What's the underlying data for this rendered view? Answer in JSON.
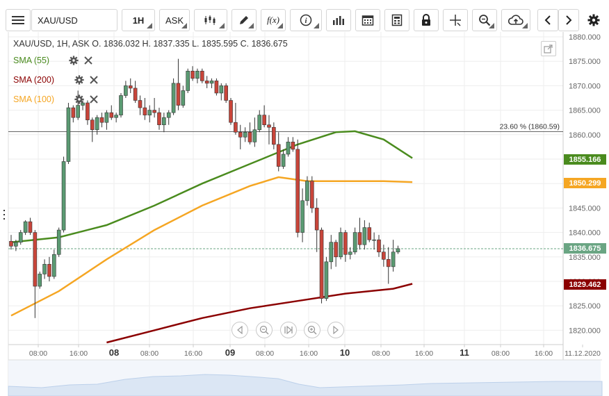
{
  "toolbar": {
    "symbol_value": "XAU/USD",
    "timeframe_label": "1H",
    "price_type_label": "ASK",
    "function_label": "f(x)",
    "info_label": "i",
    "icons": [
      "menu-icon",
      "chart-type-icon",
      "draw-pencil-icon",
      "function-icon",
      "info-icon",
      "indicators-bar-icon",
      "calendar-icon",
      "calculator-icon",
      "lock-icon",
      "crosshair-icon",
      "zoom-icon",
      "cloud-upload-icon",
      "arrow-left-icon",
      "arrow-right-icon",
      "gear-icon"
    ]
  },
  "header": {
    "ohlc_text": "XAU/USD, 1H, ASK    O. 1836.032  H. 1837.335  L. 1835.595  C. 1836.675"
  },
  "legend": [
    {
      "label": "SMA (55)",
      "color": "#4a8b1e"
    },
    {
      "label": "SMA (200)",
      "color": "#8b0000"
    },
    {
      "label": "SMA (100)",
      "color": "#f5a623"
    }
  ],
  "fib_label": "23.60 % (1860.59)",
  "price_tags": [
    {
      "label": "1855.166",
      "color": "#4a8b1e",
      "value": 1855.166
    },
    {
      "label": "1850.299",
      "color": "#f5a623",
      "value": 1850.299
    },
    {
      "label": "1836.675",
      "color": "#6aa583",
      "value": 1836.675
    },
    {
      "label": "1829.462",
      "color": "#8b0000",
      "value": 1829.462
    }
  ],
  "chart_data": {
    "type": "candlestick",
    "symbol": "XAU/USD",
    "timeframe": "1H",
    "y_ticks": [
      "1880.000",
      "1875.000",
      "1870.000",
      "1865.000",
      "1860.000",
      "1855.000",
      "1850.000",
      "1845.000",
      "1840.000",
      "1835.000",
      "1830.000",
      "1825.000",
      "1820.000"
    ],
    "ylim": [
      1816,
      1881
    ],
    "x_ticks": [
      "08:00",
      "16:00",
      "08",
      "08:00",
      "16:00",
      "09",
      "08:00",
      "16:00",
      "10",
      "08:00",
      "16:00",
      "11",
      "08:00",
      "16:00",
      "11.12.2020"
    ],
    "bold_x_ticks": [
      "08",
      "09",
      "10",
      "11"
    ],
    "fibonacci": {
      "level": "23.60 %",
      "value": 1860.59
    },
    "last_price": 1836.675,
    "candles": [
      [
        1838.2,
        1839.5,
        1836.5,
        1837.2
      ],
      [
        1837.2,
        1838.5,
        1836.2,
        1838.0
      ],
      [
        1838.0,
        1840.5,
        1837.5,
        1840.0
      ],
      [
        1840.0,
        1842.5,
        1839.5,
        1842.2
      ],
      [
        1842.2,
        1843.0,
        1839.5,
        1840.0
      ],
      [
        1840.0,
        1840.5,
        1822.5,
        1829.0
      ],
      [
        1829.0,
        1832.0,
        1828.5,
        1831.5
      ],
      [
        1831.5,
        1834.5,
        1830.5,
        1833.5
      ],
      [
        1833.5,
        1835.0,
        1830.0,
        1831.0
      ],
      [
        1831.0,
        1836.5,
        1830.5,
        1835.5
      ],
      [
        1835.5,
        1841.0,
        1835.0,
        1840.5
      ],
      [
        1840.5,
        1855.5,
        1840.0,
        1854.5
      ],
      [
        1854.5,
        1866.5,
        1854.0,
        1865.5
      ],
      [
        1865.5,
        1866.0,
        1862.5,
        1863.5
      ],
      [
        1863.5,
        1869.0,
        1863.0,
        1866.0
      ],
      [
        1866.0,
        1867.0,
        1865.0,
        1866.5
      ],
      [
        1866.5,
        1867.0,
        1862.0,
        1863.0
      ],
      [
        1863.0,
        1863.5,
        1858.5,
        1861.0
      ],
      [
        1861.0,
        1864.0,
        1860.0,
        1863.5
      ],
      [
        1863.5,
        1864.5,
        1861.5,
        1862.5
      ],
      [
        1862.5,
        1865.0,
        1861.0,
        1864.5
      ],
      [
        1864.5,
        1866.0,
        1863.0,
        1863.5
      ],
      [
        1863.5,
        1864.5,
        1862.5,
        1864.0
      ],
      [
        1864.0,
        1868.5,
        1863.5,
        1868.0
      ],
      [
        1868.0,
        1871.0,
        1867.5,
        1870.0
      ],
      [
        1870.0,
        1871.5,
        1868.5,
        1869.5
      ],
      [
        1869.5,
        1871.0,
        1866.5,
        1867.0
      ],
      [
        1867.0,
        1868.0,
        1864.0,
        1865.5
      ],
      [
        1865.5,
        1867.5,
        1863.0,
        1864.0
      ],
      [
        1864.0,
        1866.0,
        1862.5,
        1865.0
      ],
      [
        1865.0,
        1867.5,
        1863.5,
        1864.5
      ],
      [
        1864.5,
        1865.5,
        1861.0,
        1862.0
      ],
      [
        1862.0,
        1864.5,
        1860.5,
        1863.5
      ],
      [
        1863.5,
        1865.0,
        1862.0,
        1864.5
      ],
      [
        1864.5,
        1871.5,
        1864.0,
        1870.5
      ],
      [
        1870.5,
        1875.5,
        1865.0,
        1866.0
      ],
      [
        1866.0,
        1870.0,
        1865.5,
        1869.0
      ],
      [
        1869.0,
        1873.5,
        1868.5,
        1873.0
      ],
      [
        1873.0,
        1874.0,
        1871.0,
        1871.5
      ],
      [
        1871.5,
        1873.5,
        1870.5,
        1873.0
      ],
      [
        1873.0,
        1873.5,
        1870.5,
        1871.0
      ],
      [
        1871.0,
        1872.0,
        1869.5,
        1870.5
      ],
      [
        1870.5,
        1871.5,
        1869.5,
        1871.0
      ],
      [
        1871.0,
        1871.5,
        1868.0,
        1868.5
      ],
      [
        1868.5,
        1870.5,
        1867.0,
        1870.0
      ],
      [
        1870.0,
        1870.5,
        1866.5,
        1867.0
      ],
      [
        1867.0,
        1867.5,
        1862.0,
        1862.5
      ],
      [
        1862.5,
        1866.5,
        1860.0,
        1860.5
      ],
      [
        1860.5,
        1862.0,
        1857.0,
        1859.5
      ],
      [
        1859.5,
        1861.5,
        1858.5,
        1860.5
      ],
      [
        1860.5,
        1862.5,
        1858.0,
        1858.5
      ],
      [
        1858.5,
        1863.5,
        1857.5,
        1861.0
      ],
      [
        1861.0,
        1865.0,
        1860.5,
        1864.0
      ],
      [
        1864.0,
        1866.0,
        1861.5,
        1862.0
      ],
      [
        1862.0,
        1864.0,
        1858.0,
        1861.5
      ],
      [
        1861.5,
        1862.5,
        1857.0,
        1858.0
      ],
      [
        1858.0,
        1860.5,
        1852.5,
        1853.5
      ],
      [
        1853.5,
        1857.0,
        1853.0,
        1856.0
      ],
      [
        1856.0,
        1859.5,
        1855.5,
        1858.5
      ],
      [
        1858.5,
        1859.5,
        1856.5,
        1857.0
      ],
      [
        1857.0,
        1859.0,
        1839.0,
        1840.0
      ],
      [
        1840.0,
        1849.0,
        1838.0,
        1846.5
      ],
      [
        1846.5,
        1851.5,
        1845.5,
        1850.5
      ],
      [
        1850.5,
        1851.5,
        1844.0,
        1845.0
      ],
      [
        1845.0,
        1847.0,
        1836.0,
        1840.5
      ],
      [
        1840.5,
        1841.0,
        1825.5,
        1826.5
      ],
      [
        1826.5,
        1835.0,
        1826.0,
        1834.0
      ],
      [
        1834.0,
        1839.5,
        1832.5,
        1838.0
      ],
      [
        1838.0,
        1838.5,
        1833.0,
        1835.0
      ],
      [
        1835.0,
        1841.0,
        1834.5,
        1840.0
      ],
      [
        1840.0,
        1840.5,
        1834.0,
        1835.5
      ],
      [
        1835.5,
        1837.0,
        1834.5,
        1836.0
      ],
      [
        1836.0,
        1841.0,
        1835.5,
        1840.0
      ],
      [
        1840.0,
        1843.0,
        1836.5,
        1837.5
      ],
      [
        1837.5,
        1842.5,
        1836.5,
        1841.0
      ],
      [
        1841.0,
        1842.0,
        1838.0,
        1838.5
      ],
      [
        1838.5,
        1840.0,
        1836.5,
        1838.5
      ],
      [
        1838.5,
        1839.5,
        1835.0,
        1836.0
      ],
      [
        1836.0,
        1837.5,
        1833.0,
        1834.5
      ],
      [
        1834.5,
        1837.0,
        1829.5,
        1833.0
      ],
      [
        1833.0,
        1838.5,
        1832.0,
        1836.0
      ],
      [
        1836.0,
        1837.3,
        1835.6,
        1836.7
      ]
    ],
    "sma55": [
      [
        0,
        1838.0
      ],
      [
        10,
        1839.0
      ],
      [
        20,
        1841.5
      ],
      [
        30,
        1845.5
      ],
      [
        40,
        1850.0
      ],
      [
        50,
        1854.0
      ],
      [
        60,
        1858.0
      ],
      [
        68,
        1860.5
      ],
      [
        72,
        1860.7
      ],
      [
        78,
        1859.0
      ],
      [
        84,
        1855.2
      ]
    ],
    "sma100": [
      [
        0,
        1823.0
      ],
      [
        10,
        1828.0
      ],
      [
        20,
        1834.5
      ],
      [
        30,
        1840.5
      ],
      [
        40,
        1845.5
      ],
      [
        50,
        1849.5
      ],
      [
        56,
        1851.3
      ],
      [
        62,
        1850.5
      ],
      [
        70,
        1850.5
      ],
      [
        78,
        1850.5
      ],
      [
        84,
        1850.3
      ]
    ],
    "sma200": [
      [
        20,
        1817.5
      ],
      [
        30,
        1820.0
      ],
      [
        40,
        1822.5
      ],
      [
        50,
        1824.5
      ],
      [
        60,
        1826.0
      ],
      [
        70,
        1827.5
      ],
      [
        80,
        1828.5
      ],
      [
        84,
        1829.5
      ]
    ]
  },
  "nav_icons": [
    "pan-left-icon",
    "zoom-out-icon",
    "reset-icon",
    "zoom-in-icon",
    "pan-right-icon"
  ]
}
